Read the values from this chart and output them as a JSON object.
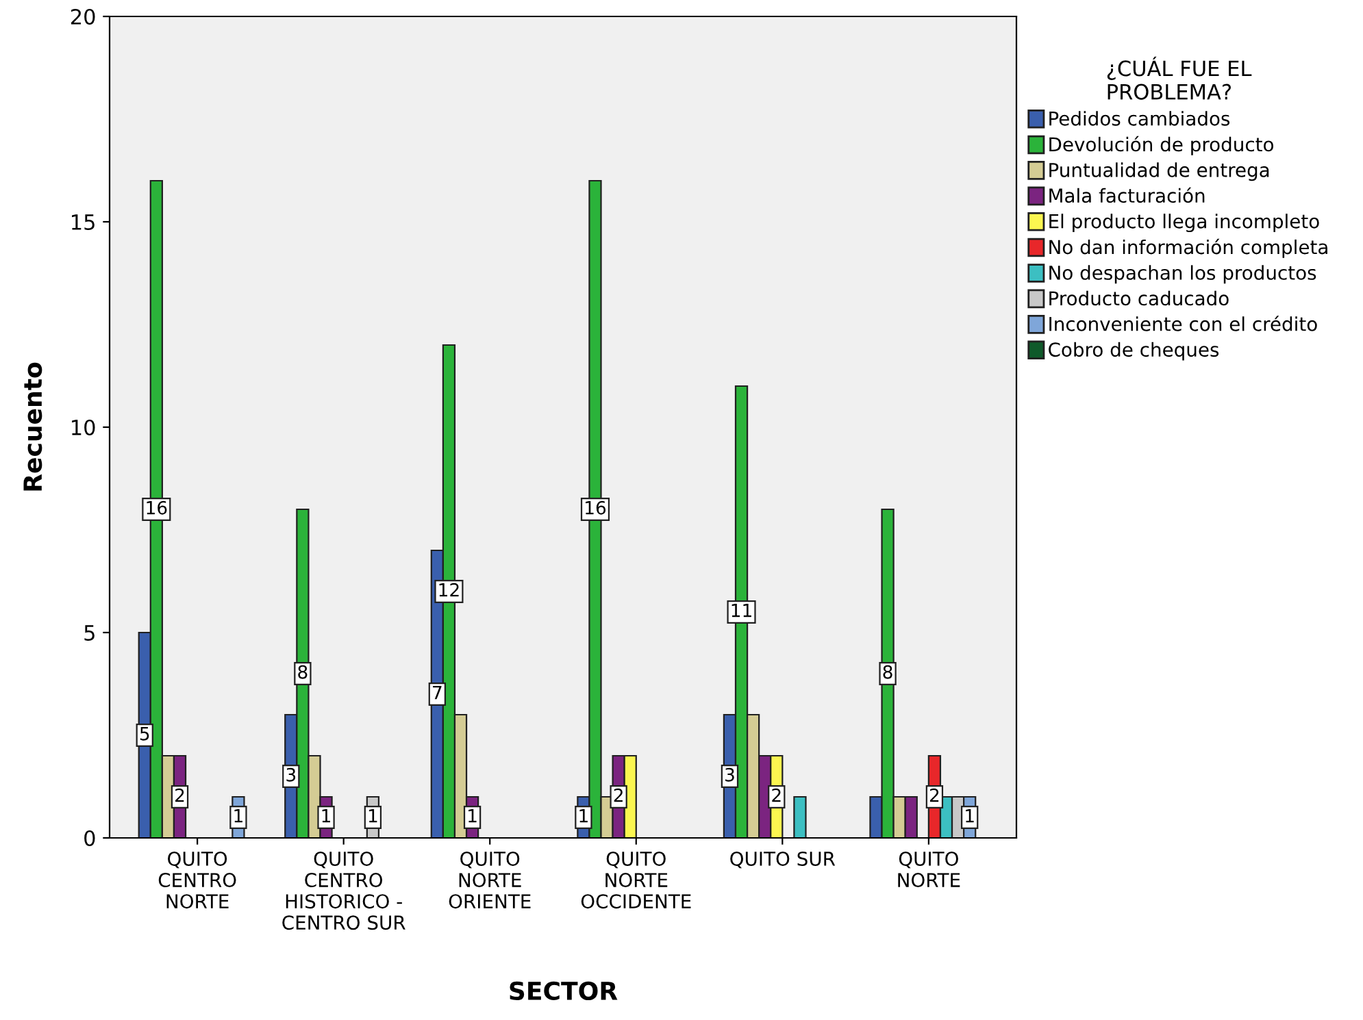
{
  "chart_data": {
    "type": "bar",
    "xlabel": "SECTOR",
    "ylabel": "Recuento",
    "legend_title": "¿CUÁL FUE EL\nPROBLEMA?",
    "categories": [
      "QUITO\nCENTRO\nNORTE",
      "QUITO\nCENTRO\nHISTORICO -\nCENTRO SUR",
      "QUITO\nNORTE\nORIENTE",
      "QUITO\nNORTE\nOCCIDENTE",
      "QUITO SUR",
      "QUITO\nNORTE"
    ],
    "series": [
      {
        "name": "Pedidos cambiados",
        "color": "#3a5fad",
        "values": [
          5,
          3,
          7,
          1,
          3,
          1
        ],
        "value_labels": [
          "5",
          "3",
          "7",
          "1",
          "3",
          null
        ]
      },
      {
        "name": "Devolución de producto",
        "color": "#2bb33a",
        "values": [
          16,
          8,
          12,
          16,
          11,
          8
        ],
        "value_labels": [
          "16",
          "8",
          "12",
          "16",
          "11",
          "8"
        ]
      },
      {
        "name": "Puntualidad de entrega",
        "color": "#d4cc94",
        "values": [
          2,
          2,
          3,
          1,
          3,
          1
        ],
        "value_labels": [
          null,
          null,
          null,
          null,
          null,
          null
        ]
      },
      {
        "name": "Mala facturación",
        "color": "#7b2480",
        "values": [
          2,
          1,
          1,
          2,
          2,
          1
        ],
        "value_labels": [
          "2",
          "1",
          "1",
          "2",
          null,
          null
        ]
      },
      {
        "name": "El producto llega incompleto",
        "color": "#fbf650",
        "values": [
          0,
          0,
          0,
          2,
          2,
          0
        ],
        "value_labels": [
          null,
          null,
          null,
          null,
          "2",
          null
        ]
      },
      {
        "name": "No dan información completa",
        "color": "#e8272a",
        "values": [
          0,
          0,
          0,
          0,
          0,
          2
        ],
        "value_labels": [
          null,
          null,
          null,
          null,
          null,
          "2"
        ]
      },
      {
        "name": "No despachan los productos",
        "color": "#3cbfc2",
        "values": [
          0,
          0,
          0,
          0,
          1,
          1
        ],
        "value_labels": [
          null,
          null,
          null,
          null,
          null,
          null
        ]
      },
      {
        "name": "Producto caducado",
        "color": "#c8c8c8",
        "values": [
          0,
          1,
          0,
          0,
          0,
          1
        ],
        "value_labels": [
          null,
          "1",
          null,
          null,
          null,
          null
        ]
      },
      {
        "name": "Inconveniente con el crédito",
        "color": "#7fa6d9",
        "values": [
          1,
          0,
          0,
          0,
          0,
          1
        ],
        "value_labels": [
          "1",
          null,
          null,
          null,
          null,
          "1"
        ]
      },
      {
        "name": "Cobro de cheques",
        "color": "#0f5a2a",
        "values": [
          0,
          0,
          0,
          0,
          0,
          0
        ],
        "value_labels": [
          null,
          null,
          null,
          null,
          null,
          null
        ]
      }
    ],
    "ylim": [
      0,
      20
    ],
    "yticks": [
      0,
      5,
      10,
      15,
      20
    ],
    "grid": false,
    "legend": "top right"
  }
}
